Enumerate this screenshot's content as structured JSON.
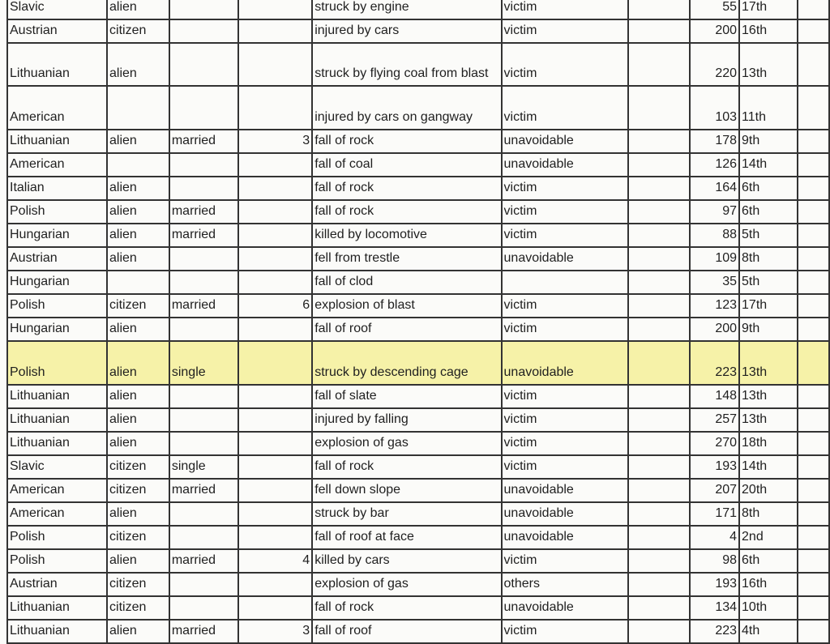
{
  "highlight_color": "#f6f2a8",
  "rows": [
    {
      "nationality": "Slavic",
      "status": "alien",
      "marital": "",
      "children": "",
      "cause": "struck by engine",
      "classification": "victim",
      "number": "55",
      "ordinal": "17th"
    },
    {
      "nationality": "Austrian",
      "status": "citizen",
      "marital": "",
      "children": "",
      "cause": "injured by cars",
      "classification": "victim",
      "number": "200",
      "ordinal": "16th"
    },
    {
      "nationality": "Lithuanian",
      "status": "alien",
      "marital": "",
      "children": "",
      "cause": "struck by flying coal from blast",
      "classification": "victim",
      "number": "220",
      "ordinal": "13th"
    },
    {
      "nationality": "American",
      "status": "",
      "marital": "",
      "children": "",
      "cause": "injured by cars on gangway",
      "classification": "victim",
      "number": "103",
      "ordinal": "11th"
    },
    {
      "nationality": "Lithuanian",
      "status": "alien",
      "marital": "married",
      "children": "3",
      "cause": "fall of rock",
      "classification": "unavoidable",
      "number": "178",
      "ordinal": "9th"
    },
    {
      "nationality": "American",
      "status": "",
      "marital": "",
      "children": "",
      "cause": "fall of coal",
      "classification": "unavoidable",
      "number": "126",
      "ordinal": "14th"
    },
    {
      "nationality": "Italian",
      "status": "alien",
      "marital": "",
      "children": "",
      "cause": "fall of rock",
      "classification": "victim",
      "number": "164",
      "ordinal": "6th"
    },
    {
      "nationality": "Polish",
      "status": "alien",
      "marital": "married",
      "children": "",
      "cause": "fall of rock",
      "classification": "victim",
      "number": "97",
      "ordinal": "6th"
    },
    {
      "nationality": "Hungarian",
      "status": "alien",
      "marital": "married",
      "children": "",
      "cause": "killed by locomotive",
      "classification": "victim",
      "number": "88",
      "ordinal": "5th"
    },
    {
      "nationality": "Austrian",
      "status": "alien",
      "marital": "",
      "children": "",
      "cause": "fell from trestle",
      "classification": "unavoidable",
      "number": "109",
      "ordinal": "8th"
    },
    {
      "nationality": "Hungarian",
      "status": "",
      "marital": "",
      "children": "",
      "cause": "fall of clod",
      "classification": "",
      "number": "35",
      "ordinal": "5th"
    },
    {
      "nationality": "Polish",
      "status": "citizen",
      "marital": "married",
      "children": "6",
      "cause": "explosion of blast",
      "classification": "victim",
      "number": "123",
      "ordinal": "17th"
    },
    {
      "nationality": "Hungarian",
      "status": "alien",
      "marital": "",
      "children": "",
      "cause": "fall of roof",
      "classification": "victim",
      "number": "200",
      "ordinal": "9th"
    },
    {
      "nationality": "Polish",
      "status": "alien",
      "marital": "single",
      "children": "",
      "cause": "struck by descending cage",
      "classification": "unavoidable",
      "number": "223",
      "ordinal": "13th",
      "highlighted": true
    },
    {
      "nationality": "Lithuanian",
      "status": "alien",
      "marital": "",
      "children": "",
      "cause": "fall of slate",
      "classification": "victim",
      "number": "148",
      "ordinal": "13th"
    },
    {
      "nationality": "Lithuanian",
      "status": "alien",
      "marital": "",
      "children": "",
      "cause": "injured by falling",
      "classification": "victim",
      "number": "257",
      "ordinal": "13th"
    },
    {
      "nationality": "Lithuanian",
      "status": "alien",
      "marital": "",
      "children": "",
      "cause": "explosion of gas",
      "classification": "victim",
      "number": "270",
      "ordinal": "18th"
    },
    {
      "nationality": "Slavic",
      "status": "citizen",
      "marital": "single",
      "children": "",
      "cause": "fall of rock",
      "classification": "victim",
      "number": "193",
      "ordinal": "14th"
    },
    {
      "nationality": "American",
      "status": "citizen",
      "marital": "married",
      "children": "",
      "cause": "fell down slope",
      "classification": "unavoidable",
      "number": "207",
      "ordinal": "20th"
    },
    {
      "nationality": "American",
      "status": "alien",
      "marital": "",
      "children": "",
      "cause": "struck by bar",
      "classification": "unavoidable",
      "number": "171",
      "ordinal": "8th"
    },
    {
      "nationality": "Polish",
      "status": "citizen",
      "marital": "",
      "children": "",
      "cause": "fall of roof at face",
      "classification": "unavoidable",
      "number": "4",
      "ordinal": "2nd"
    },
    {
      "nationality": "Polish",
      "status": "alien",
      "marital": "married",
      "children": "4",
      "cause": "killed by cars",
      "classification": "victim",
      "number": "98",
      "ordinal": "6th"
    },
    {
      "nationality": "Austrian",
      "status": "citizen",
      "marital": "",
      "children": "",
      "cause": "explosion of gas",
      "classification": "others",
      "number": "193",
      "ordinal": "16th"
    },
    {
      "nationality": "Lithuanian",
      "status": "citizen",
      "marital": "",
      "children": "",
      "cause": "fall of rock",
      "classification": "unavoidable",
      "number": "134",
      "ordinal": "10th"
    },
    {
      "nationality": "Lithuanian",
      "status": "alien",
      "marital": "married",
      "children": "3",
      "cause": "fall of roof",
      "classification": "victim",
      "number": "223",
      "ordinal": "4th"
    }
  ]
}
